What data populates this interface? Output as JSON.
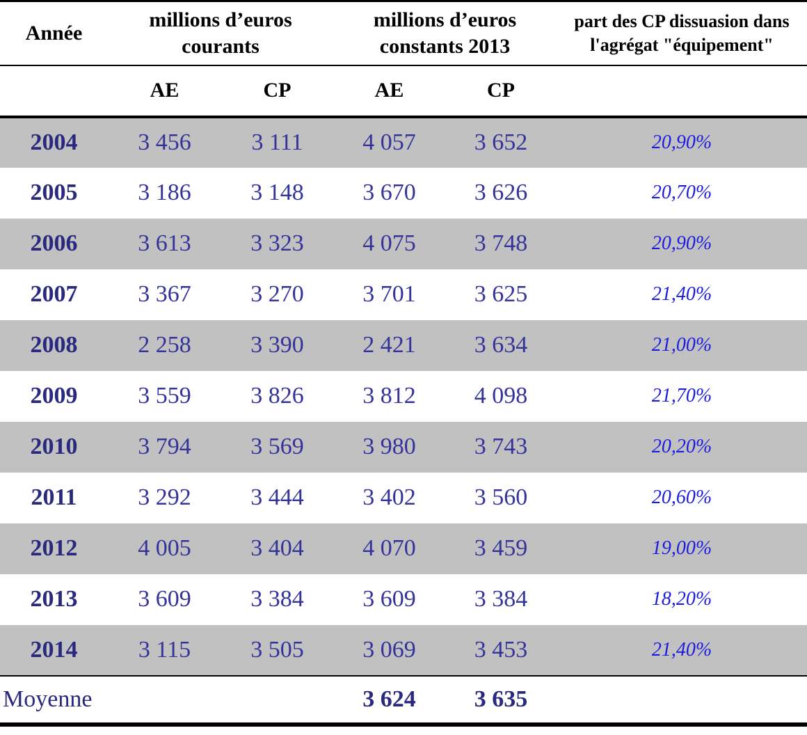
{
  "chart_data": {
    "type": "table",
    "header": {
      "year": "Année",
      "group_courants": "millions d’euros courants",
      "group_constants": "millions d’euros constants 2013",
      "share": "part des CP dissuasion dans l'agrégat \"équipement\"",
      "subheaders": [
        "AE",
        "CP",
        "AE",
        "CP"
      ]
    },
    "rows": [
      {
        "year": "2004",
        "values": [
          "3 456",
          "3 111",
          "4 057",
          "3 652"
        ],
        "share": "20,90%"
      },
      {
        "year": "2005",
        "values": [
          "3 186",
          "3 148",
          "3 670",
          "3 626"
        ],
        "share": "20,70%"
      },
      {
        "year": "2006",
        "values": [
          "3 613",
          "3 323",
          "4 075",
          "3 748"
        ],
        "share": "20,90%"
      },
      {
        "year": "2007",
        "values": [
          "3 367",
          "3 270",
          "3 701",
          "3 625"
        ],
        "share": "21,40%"
      },
      {
        "year": "2008",
        "values": [
          "2 258",
          "3 390",
          "2 421",
          "3 634"
        ],
        "share": "21,00%"
      },
      {
        "year": "2009",
        "values": [
          "3 559",
          "3 826",
          "3 812",
          "4 098"
        ],
        "share": "21,70%"
      },
      {
        "year": "2010",
        "values": [
          "3 794",
          "3 569",
          "3 980",
          "3 743"
        ],
        "share": "20,20%"
      },
      {
        "year": "2011",
        "values": [
          "3 292",
          "3 444",
          "3 402",
          "3 560"
        ],
        "share": "20,60%"
      },
      {
        "year": "2012",
        "values": [
          "4 005",
          "3 404",
          "4 070",
          "3 459"
        ],
        "share": "19,00%"
      },
      {
        "year": "2013",
        "values": [
          "3 609",
          "3 384",
          "3 609",
          "3 384"
        ],
        "share": "18,20%"
      },
      {
        "year": "2014",
        "values": [
          "3 115",
          "3 505",
          "3 069",
          "3 453"
        ],
        "share": "21,40%"
      }
    ],
    "footer": {
      "label": "Moyenne",
      "ae_constant": "3 624",
      "cp_constant": "3 635"
    },
    "layout": {
      "shaded_rows_start_with_first": true,
      "column_order": [
        "year",
        "ae_courants",
        "cp_courants",
        "ae_constants",
        "cp_constants",
        "share"
      ]
    }
  },
  "colors": {
    "header_text": "#000000",
    "year_text": "#29297e",
    "value_text": "#333399",
    "share_text": "#1c1cde",
    "row_shading": "#c1c1c1",
    "border": "#000000"
  }
}
